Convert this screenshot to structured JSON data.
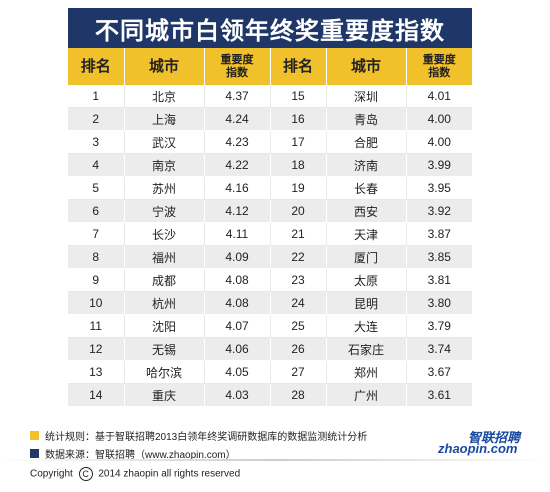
{
  "title": "不同城市白领年终奖重要度指数",
  "headers": [
    "排名",
    "城市",
    "重要度",
    "指数",
    "排名",
    "城市",
    "重要度",
    "指数"
  ],
  "rows": [
    {
      "r1": "1",
      "c1": "北京",
      "v1": "4.37",
      "r2": "15",
      "c2": "深圳",
      "v2": "4.01"
    },
    {
      "r1": "2",
      "c1": "上海",
      "v1": "4.24",
      "r2": "16",
      "c2": "青岛",
      "v2": "4.00"
    },
    {
      "r1": "3",
      "c1": "武汉",
      "v1": "4.23",
      "r2": "17",
      "c2": "合肥",
      "v2": "4.00"
    },
    {
      "r1": "4",
      "c1": "南京",
      "v1": "4.22",
      "r2": "18",
      "c2": "济南",
      "v2": "3.99"
    },
    {
      "r1": "5",
      "c1": "苏州",
      "v1": "4.16",
      "r2": "19",
      "c2": "长春",
      "v2": "3.95"
    },
    {
      "r1": "6",
      "c1": "宁波",
      "v1": "4.12",
      "r2": "20",
      "c2": "西安",
      "v2": "3.92"
    },
    {
      "r1": "7",
      "c1": "长沙",
      "v1": "4.11",
      "r2": "21",
      "c2": "天津",
      "v2": "3.87"
    },
    {
      "r1": "8",
      "c1": "福州",
      "v1": "4.09",
      "r2": "22",
      "c2": "厦门",
      "v2": "3.85"
    },
    {
      "r1": "9",
      "c1": "成都",
      "v1": "4.08",
      "r2": "23",
      "c2": "太原",
      "v2": "3.81"
    },
    {
      "r1": "10",
      "c1": "杭州",
      "v1": "4.08",
      "r2": "24",
      "c2": "昆明",
      "v2": "3.80"
    },
    {
      "r1": "11",
      "c1": "沈阳",
      "v1": "4.07",
      "r2": "25",
      "c2": "大连",
      "v2": "3.79"
    },
    {
      "r1": "12",
      "c1": "无锡",
      "v1": "4.06",
      "r2": "26",
      "c2": "石家庄",
      "v2": "3.74"
    },
    {
      "r1": "13",
      "c1": "哈尔滨",
      "v1": "4.05",
      "r2": "27",
      "c2": "郑州",
      "v2": "3.67"
    },
    {
      "r1": "14",
      "c1": "重庆",
      "v1": "4.03",
      "r2": "28",
      "c2": "广州",
      "v2": "3.61"
    }
  ],
  "notes": {
    "stat_rule": "统计规则：基于智联招聘2013白领年终奖调研数据库的数据监测统计分析",
    "data_source": "数据来源：智联招聘（www.zhaopin.com）",
    "copyright": "Copyright",
    "copyright_rest": "2014 zhaopin all rights  reserved",
    "copyright_symbol": "C"
  },
  "logo": {
    "latin": "zhaopin.com",
    "cn": "智联招聘"
  },
  "colors": {
    "title_bg": "#1f3768",
    "header_bg": "#f1c12b",
    "note_yellow": "#f1c12b",
    "note_blue": "#1f3768",
    "logo_blue": "#1a4aa0"
  }
}
